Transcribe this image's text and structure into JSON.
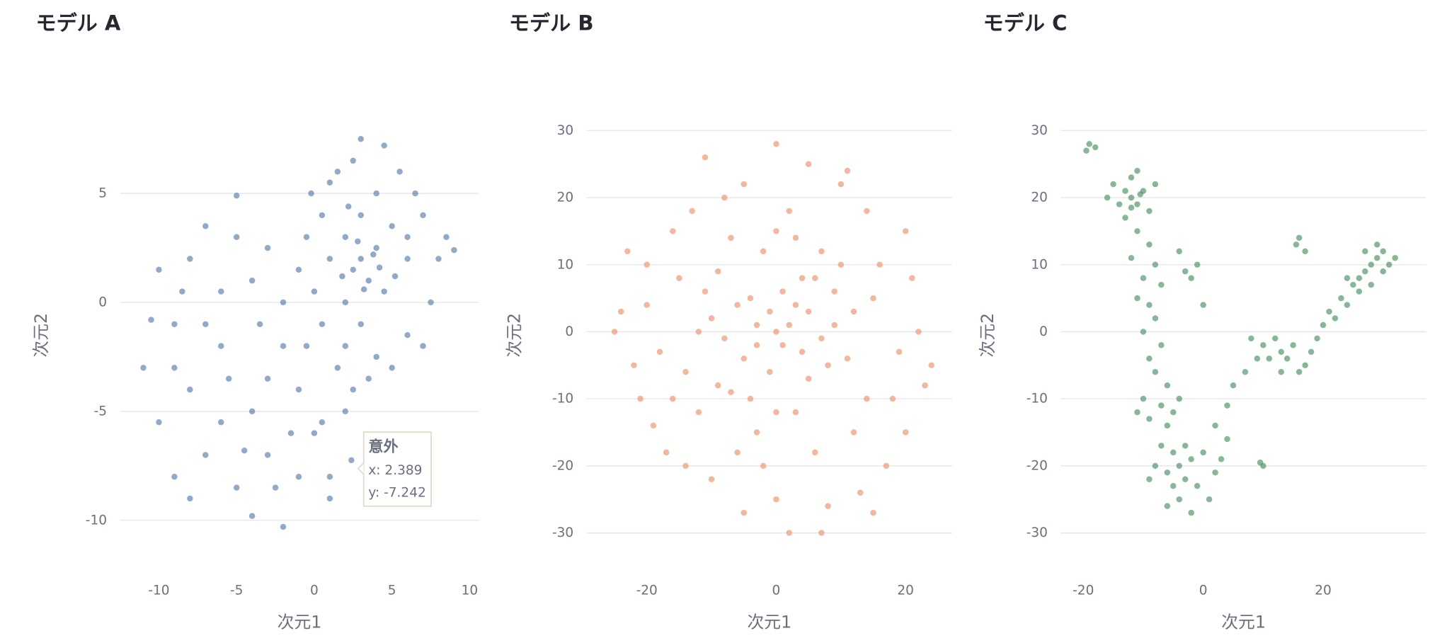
{
  "chart_data": [
    {
      "type": "scatter",
      "title": "モデル A",
      "x_label": "次元1",
      "y_label": "次元2",
      "color": "#4e76a8",
      "grid": true,
      "xlim": [
        -12.5,
        10.6
      ],
      "ylim": [
        -11.5,
        8.5
      ],
      "xticks": [
        -10,
        -5,
        0,
        5,
        10
      ],
      "yticks": [
        -10,
        -5,
        0,
        5
      ],
      "x": [
        3,
        2.5,
        4,
        3.5,
        2,
        4.5,
        1,
        5,
        3,
        2,
        6,
        0.5,
        4,
        1.5,
        3,
        5.5,
        7,
        8,
        7.5,
        6,
        4,
        2,
        0,
        -0.5,
        1,
        6.5,
        8.5,
        9,
        3.5,
        5,
        7,
        0.5,
        -1,
        2.5,
        4.5,
        3.8,
        2.8,
        3.2,
        1.8,
        4.2,
        5.2,
        2.2,
        6,
        -0.2,
        3,
        -10,
        -9,
        -11,
        -8,
        -7,
        -5,
        -4,
        -6,
        -8,
        -10,
        -9,
        -7,
        -5,
        -4,
        -3,
        -2,
        -1,
        0,
        1,
        2,
        2.5,
        1.5,
        -1,
        -2,
        -3,
        -4,
        -6,
        -7,
        -9,
        -10.5,
        -6,
        -3,
        -2,
        -0.5,
        0.5,
        -5,
        -8,
        -2.5,
        1,
        2.389,
        -3.5,
        -5.5,
        -8.5,
        -1.5,
        -4.5
      ],
      "y": [
        2,
        1.5,
        2.5,
        1,
        3,
        0.5,
        2,
        3.5,
        4,
        0,
        2,
        4,
        5,
        6,
        7.5,
        6,
        4,
        2,
        0,
        -1.5,
        -2.5,
        -2,
        0.5,
        3,
        5.5,
        5,
        3,
        2.4,
        -3.5,
        -3,
        -2,
        -1,
        1.5,
        6.5,
        7.2,
        2.2,
        2.8,
        0.6,
        1.2,
        1.6,
        1.2,
        4.4,
        3,
        5,
        -1,
        1.5,
        -1,
        -3,
        2,
        3.5,
        3,
        1,
        -2,
        -4,
        -5.5,
        -8,
        -7,
        -8.5,
        -9.8,
        -7,
        -10.3,
        -8,
        -6,
        -9,
        -5,
        -4,
        -3,
        -4,
        -2,
        -3.5,
        -5,
        -5.5,
        -1,
        -3,
        -0.8,
        0.5,
        2.5,
        0,
        -2,
        -5.5,
        4.9,
        -9,
        -8.5,
        -8,
        -7.242,
        -1,
        -3.5,
        0.5,
        -6,
        -6.8
      ],
      "tooltip": {
        "title": "意外",
        "lines": [
          "x: 2.389",
          "y: -7.242"
        ]
      }
    },
    {
      "type": "scatter",
      "title": "モデル B",
      "x_label": "次元1",
      "y_label": "次元2",
      "color": "#ef8a5f",
      "grid": true,
      "xlim": [
        -29.3,
        27.2
      ],
      "ylim": [
        -33,
        32
      ],
      "xticks": [
        -20,
        0,
        20
      ],
      "yticks": [
        -30,
        -20,
        -10,
        0,
        10,
        20,
        30
      ],
      "x": [
        0,
        2,
        -3,
        5,
        -6,
        8,
        -9,
        3,
        -2,
        10,
        -12,
        12,
        -15,
        15,
        -18,
        18,
        -20,
        20,
        -22,
        22,
        -24,
        23,
        -5,
        5,
        0,
        -8,
        10,
        -13,
        14,
        -16,
        -19,
        17,
        -10,
        0,
        8,
        -5,
        2,
        7,
        -14,
        13,
        1,
        -1,
        4,
        -4,
        6,
        -7,
        9,
        -10,
        3,
        -3,
        11,
        -11,
        6,
        -6,
        14,
        -14,
        16,
        -16,
        20,
        -21,
        2,
        -2,
        7,
        -7,
        12,
        -12,
        4,
        -4,
        1,
        -1,
        3,
        -3,
        5,
        -5,
        7,
        -8,
        9,
        -9,
        0,
        0,
        19,
        -20,
        24,
        -25,
        15,
        -17,
        21,
        -23,
        11,
        -11
      ],
      "y": [
        0,
        1,
        -2,
        3,
        4,
        -5,
        -8,
        -12,
        12,
        10,
        -12,
        -15,
        8,
        5,
        -3,
        -10,
        10,
        15,
        -5,
        0,
        3,
        -8,
        22,
        25,
        28,
        20,
        22,
        18,
        18,
        15,
        -14,
        -20,
        -22,
        -25,
        -26,
        -27,
        -30,
        -30,
        -20,
        -24,
        6,
        -6,
        -3,
        5,
        8,
        -9,
        1,
        2,
        14,
        -15,
        -4,
        6,
        -18,
        -18,
        -10,
        -6,
        10,
        -10,
        -15,
        -10,
        18,
        -20,
        12,
        14,
        3,
        0,
        8,
        -10,
        -2,
        3,
        4,
        1,
        -7,
        -4,
        -1,
        -1,
        6,
        9,
        -12,
        15,
        -3,
        4,
        -5,
        0,
        -27,
        -18,
        8,
        12,
        24,
        26
      ]
    },
    {
      "type": "scatter",
      "title": "モデル C",
      "x_label": "次元1",
      "y_label": "次元2",
      "color": "#3f8a57",
      "grid": true,
      "xlim": [
        -23.75,
        37.2
      ],
      "ylim": [
        -33,
        32
      ],
      "xticks": [
        -20,
        0,
        20
      ],
      "yticks": [
        -30,
        -20,
        -10,
        0,
        10,
        20,
        30
      ],
      "x": [
        -19,
        -18,
        -19.5,
        -12,
        -13,
        -11,
        -14,
        -10,
        -12,
        -15,
        -9,
        -13,
        -11,
        -16,
        -8,
        -12,
        -10.5,
        -11,
        -9,
        -12,
        -8,
        -10,
        -7,
        -11,
        -9,
        -8,
        -10,
        -7,
        -9,
        -8,
        -6,
        -10,
        -7,
        -5,
        -9,
        -6,
        -4,
        -11,
        -3,
        -1,
        -2,
        0,
        -4,
        -4,
        -5,
        -3,
        -6,
        -2,
        -7,
        -1,
        -4,
        -8,
        0,
        -5,
        2,
        -3,
        1,
        -6,
        -9,
        3,
        -2,
        4,
        2,
        4,
        5,
        7,
        9,
        10,
        12,
        13,
        14,
        15,
        17,
        16,
        18,
        19,
        20,
        21,
        22,
        23,
        24,
        25,
        26,
        27,
        28,
        29,
        30,
        31,
        27,
        29,
        32,
        26,
        28,
        30,
        24,
        13,
        11,
        8,
        16,
        15.5,
        17,
        10,
        9.5
      ],
      "y": [
        28,
        27.5,
        27,
        20,
        21,
        19,
        19,
        21,
        23,
        22,
        18,
        17,
        24,
        20,
        22,
        18.5,
        20.5,
        15,
        13,
        11,
        10,
        8,
        7,
        5,
        4,
        2,
        0,
        -2,
        -4,
        -6,
        -8,
        -10,
        -11,
        -12,
        -13,
        -14,
        -10,
        -12,
        9,
        10,
        8,
        4,
        12,
        -20,
        -18,
        -22,
        -21,
        -19,
        -17,
        -23,
        -25,
        -20,
        -18,
        -23,
        -21,
        -17,
        -25,
        -26,
        -22,
        -19,
        -27,
        -16,
        -14,
        -11,
        -8,
        -6,
        -4,
        -2,
        -1,
        -3,
        -4,
        -2,
        -5,
        -6,
        -3,
        -1,
        1,
        3,
        2,
        5,
        4,
        7,
        8,
        9,
        10,
        11,
        9,
        10,
        12,
        13,
        11,
        6,
        7,
        12,
        8,
        -6,
        -4,
        -1,
        14,
        13,
        12,
        -20,
        -19.5
      ]
    }
  ]
}
